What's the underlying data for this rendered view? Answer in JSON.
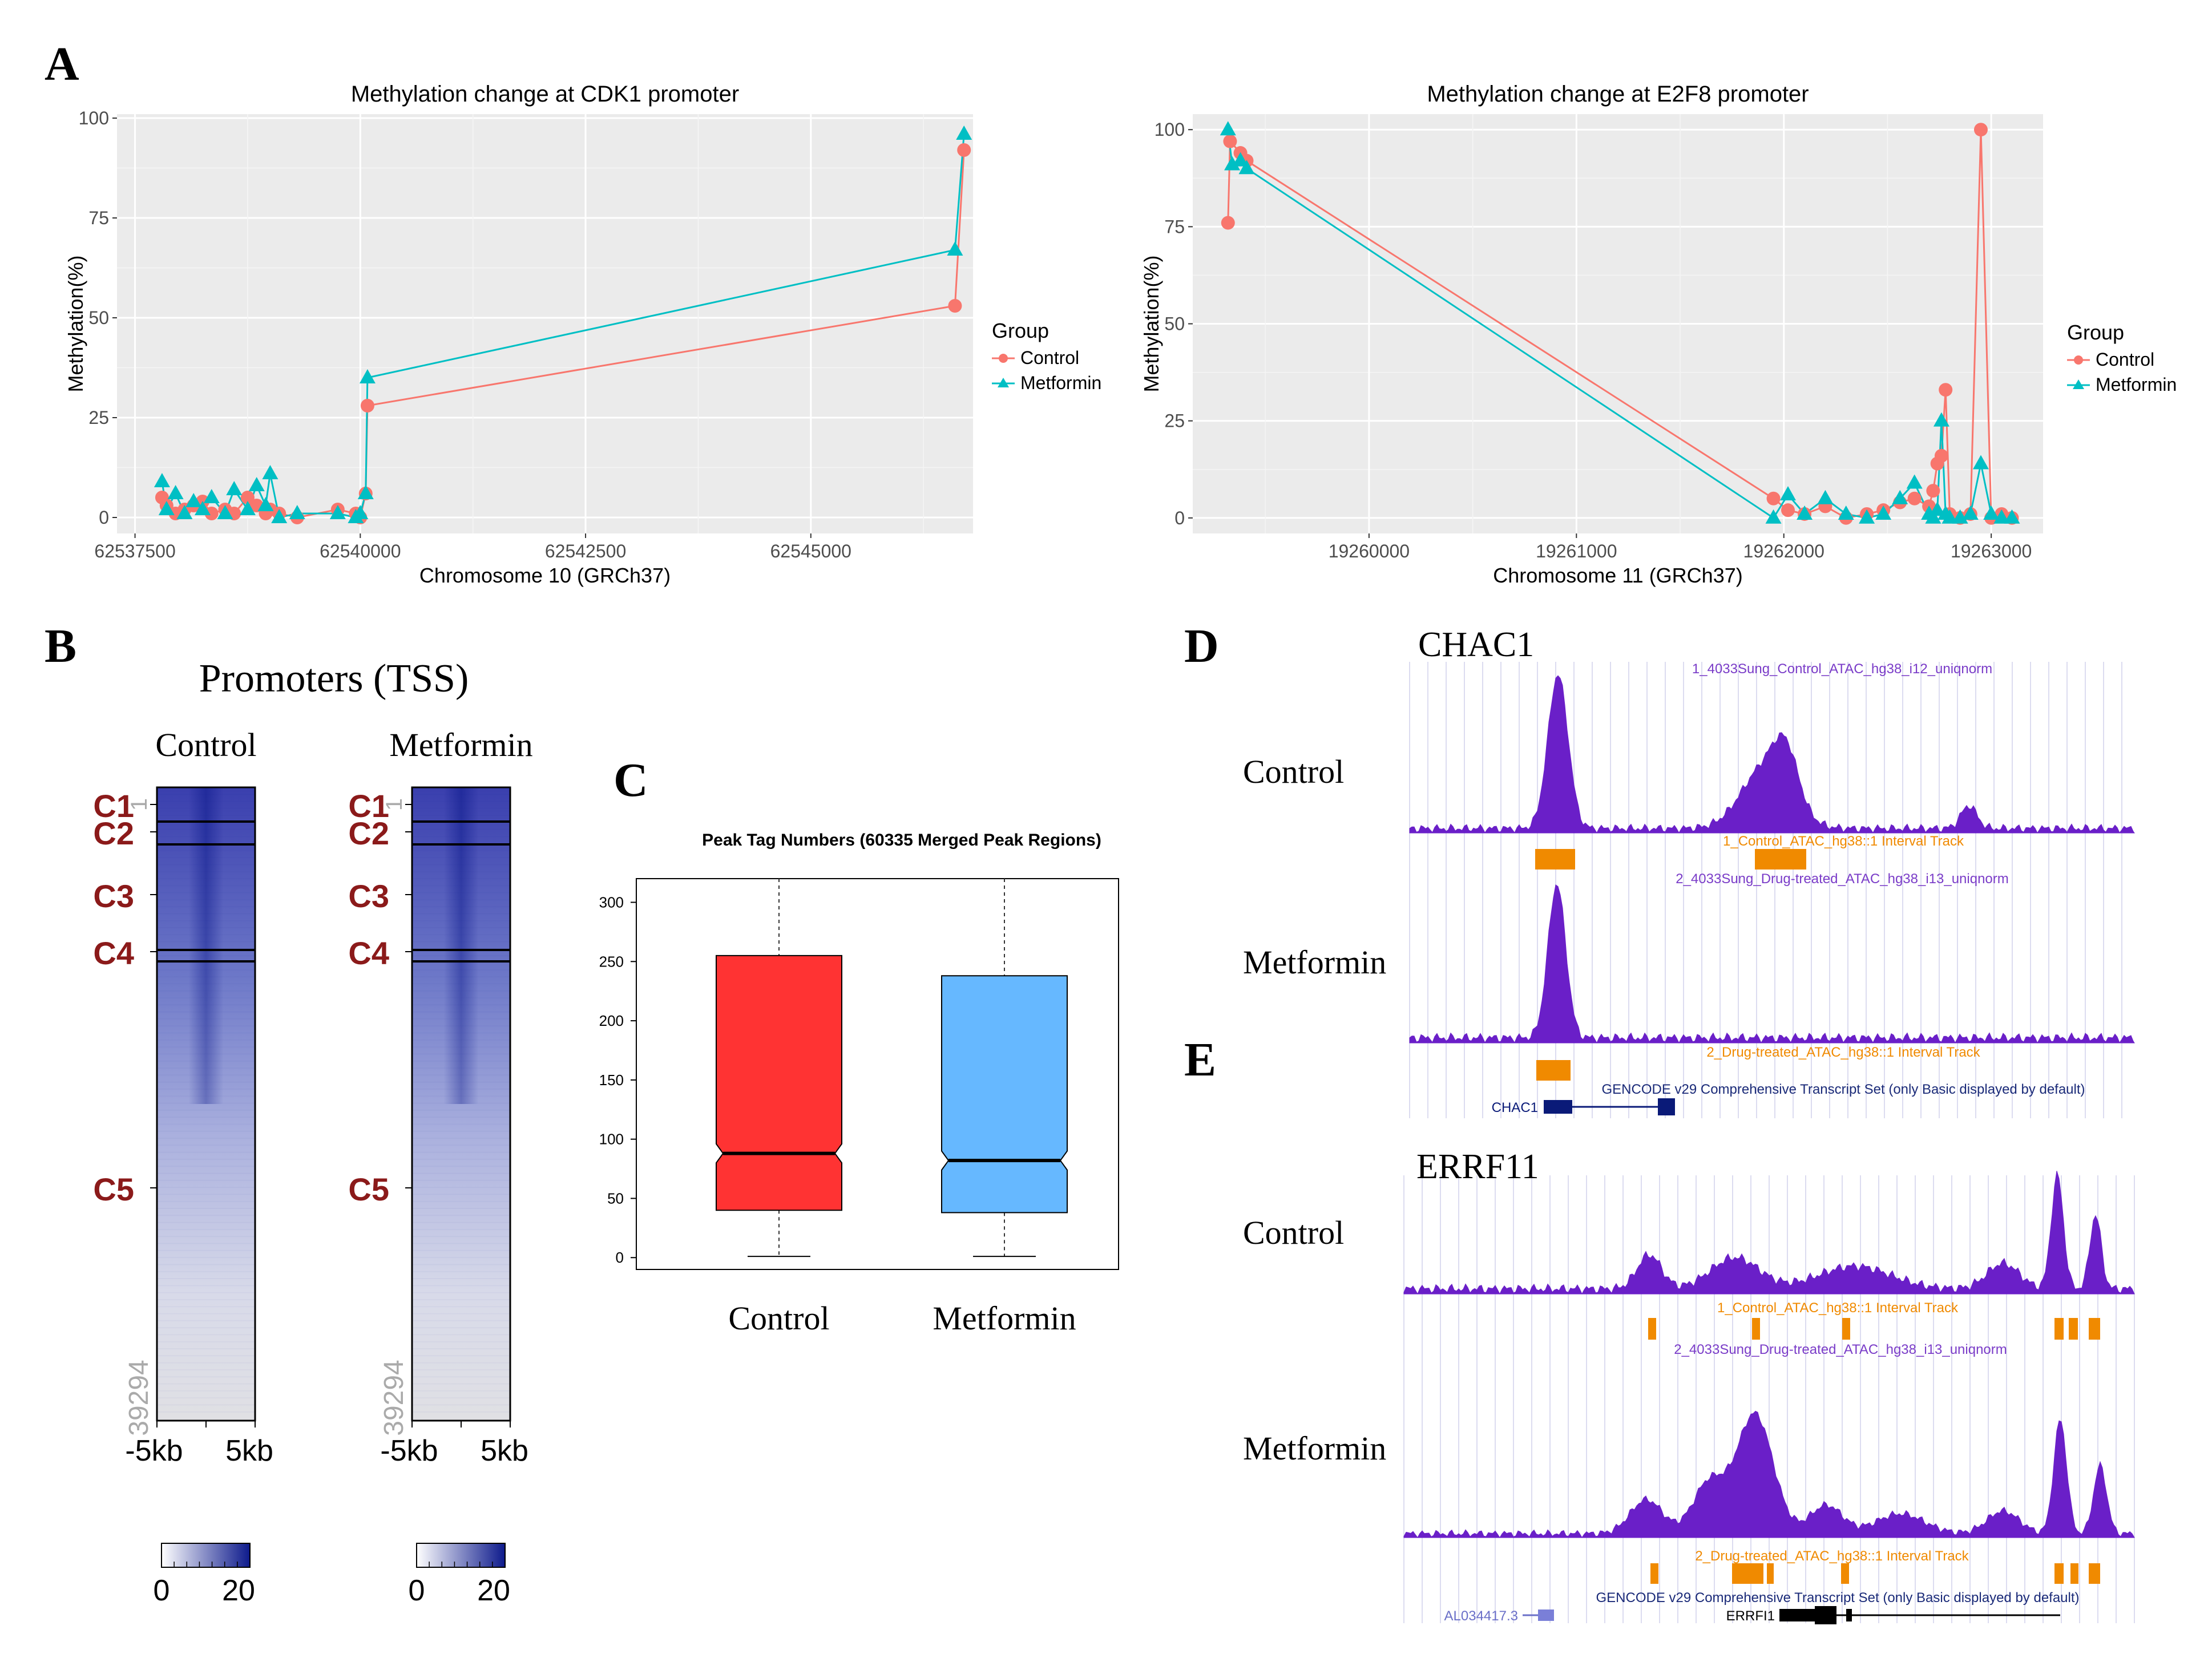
{
  "figure": {
    "panels": {
      "A": "A",
      "B": "B",
      "C": "C",
      "D": "D",
      "E": "E"
    }
  },
  "colors": {
    "control_line": "#f8766d",
    "metformin_line": "#00bfc4",
    "ggplot_bg": "#ebebeb",
    "box_control": "#ff3333",
    "box_metformin": "#66b8ff",
    "cluster_label": "#8b1a1a",
    "heatmap_blue": "#0d1a8c",
    "track_purple": "#6a1fc8",
    "interval_orange": "#f08a00",
    "gene_navy": "#0a1a78"
  },
  "chart_data": [
    {
      "id": "A_left",
      "type": "line",
      "title": "Methylation change at CDK1 promoter",
      "xlabel": "Chromosome 10 (GRCh37)",
      "ylabel": "Methylation(%)",
      "xlim": [
        62537300,
        62546800
      ],
      "ylim": [
        -4,
        101
      ],
      "xticks": [
        62537500,
        62540000,
        62542500,
        62545000
      ],
      "xtick_labels": [
        "62537500",
        "62540000",
        "62542500",
        "62545000"
      ],
      "yticks": [
        0,
        25,
        50,
        75,
        100
      ],
      "ytick_labels": [
        "0",
        "25",
        "50",
        "75",
        "100"
      ],
      "legend": {
        "title": "Group",
        "entries": [
          "Control",
          "Metformin"
        ],
        "position": "right"
      },
      "series": [
        {
          "name": "Control",
          "x": [
            62537800,
            62537850,
            62537950,
            62538050,
            62538150,
            62538250,
            62538350,
            62538500,
            62538600,
            62538750,
            62538850,
            62538950,
            62539000,
            62539100,
            62539300,
            62539750,
            62539950,
            62540000,
            62540060,
            62540080,
            62546600,
            62546700
          ],
          "y": [
            5,
            3,
            1,
            2,
            3,
            4,
            1,
            2,
            1,
            5,
            3,
            1,
            2,
            1,
            0,
            2,
            1,
            0,
            6,
            28,
            53,
            92
          ]
        },
        {
          "name": "Metformin",
          "x": [
            62537800,
            62537850,
            62537950,
            62538050,
            62538150,
            62538250,
            62538350,
            62538500,
            62538600,
            62538750,
            62538850,
            62538950,
            62539000,
            62539100,
            62539300,
            62539750,
            62539950,
            62540000,
            62540060,
            62540080,
            62546600,
            62546700
          ],
          "y": [
            9,
            2,
            6,
            1,
            4,
            2,
            5,
            1,
            7,
            2,
            8,
            3,
            11,
            0,
            1,
            1,
            0,
            1,
            6,
            35,
            67,
            96
          ]
        }
      ]
    },
    {
      "id": "A_right",
      "type": "line",
      "title": "Methylation change at E2F8 promoter",
      "xlabel": "Chromosome 11 (GRCh37)",
      "ylabel": "Methylation(%)",
      "xlim": [
        19259150,
        19263250
      ],
      "ylim": [
        -4,
        104
      ],
      "xticks": [
        19260000,
        19261000,
        19262000,
        19263000
      ],
      "xtick_labels": [
        "19260000",
        "19261000",
        "19262000",
        "19263000"
      ],
      "yticks": [
        0,
        25,
        50,
        75,
        100
      ],
      "ytick_labels": [
        "0",
        "25",
        "50",
        "75",
        "100"
      ],
      "legend": {
        "title": "Group",
        "entries": [
          "Control",
          "Metformin"
        ],
        "position": "right"
      },
      "series": [
        {
          "name": "Control",
          "x": [
            19259320,
            19259330,
            19259380,
            19259410,
            19261950,
            19262020,
            19262100,
            19262200,
            19262300,
            19262400,
            19262480,
            19262560,
            19262630,
            19262700,
            19262720,
            19262740,
            19262760,
            19262780,
            19262800,
            19262850,
            19262900,
            19262950,
            19263000,
            19263050,
            19263100
          ],
          "y": [
            76,
            97,
            94,
            92,
            5,
            2,
            1,
            3,
            0,
            1,
            2,
            4,
            5,
            3,
            7,
            14,
            16,
            33,
            1,
            0,
            1,
            100,
            0,
            1,
            0
          ]
        },
        {
          "name": "Metformin",
          "x": [
            19259320,
            19259340,
            19259380,
            19259410,
            19261950,
            19262020,
            19262100,
            19262200,
            19262300,
            19262400,
            19262480,
            19262560,
            19262630,
            19262700,
            19262720,
            19262740,
            19262760,
            19262780,
            19262800,
            19262850,
            19262900,
            19262950,
            19263000,
            19263050,
            19263100
          ],
          "y": [
            100,
            91,
            92,
            90,
            0,
            6,
            1,
            5,
            1,
            0,
            1,
            5,
            9,
            1,
            0,
            2,
            25,
            1,
            0,
            0,
            1,
            14,
            1,
            0,
            0
          ]
        }
      ]
    },
    {
      "id": "B",
      "type": "heatmap",
      "title": "Promoters (TSS)",
      "heatmaps": [
        "Control",
        "Metformin"
      ],
      "clusters": [
        "C1",
        "C2",
        "C3",
        "C4",
        "C5"
      ],
      "row_top_label": "1",
      "row_bottom_label": "39294",
      "xtick_labels": [
        "-5kb",
        "5kb"
      ],
      "colorbar": {
        "min": 0,
        "max": 20,
        "labels": [
          "0",
          "20"
        ]
      }
    },
    {
      "id": "C",
      "type": "bar",
      "subtype": "boxplot",
      "title": "Peak Tag Numbers (60335 Merged Peak Regions)",
      "categories": [
        "Control",
        "Metformin"
      ],
      "ylim": [
        -10,
        320
      ],
      "yticks": [
        0,
        50,
        100,
        150,
        200,
        250,
        300
      ],
      "ytick_labels": [
        "0",
        "50",
        "100",
        "150",
        "200",
        "250",
        "300"
      ],
      "boxes": [
        {
          "name": "Control",
          "q1": 40,
          "median": 88,
          "q3": 255,
          "whisker_low": 1,
          "whisker_high": 320
        },
        {
          "name": "Metformin",
          "q1": 38,
          "median": 82,
          "q3": 238,
          "whisker_low": 1,
          "whisker_high": 320
        }
      ]
    },
    {
      "id": "D",
      "type": "area",
      "gene": "CHAC1",
      "rows": [
        "Control",
        "Metformin"
      ],
      "track_labels": {
        "control_signal": "1_4033Sung_Control_ATAC_hg38_i12_uniqnorm",
        "control_interval": "1_Control_ATAC_hg38::1 Interval Track",
        "drug_signal": "2_4033Sung_Drug-treated_ATAC_hg38_i13_uniqnorm",
        "drug_interval": "2_Drug-treated_ATAC_hg38::1 Interval Track",
        "gencode": "GENCODE v29 Comprehensive Transcript Set (only Basic displayed by default)",
        "transcript": "CHAC1"
      }
    },
    {
      "id": "E",
      "type": "area",
      "gene": "ERRF11",
      "rows": [
        "Control",
        "Metformin"
      ],
      "track_labels": {
        "control_interval": "1_Control_ATAC_hg38::1 Interval Track",
        "drug_signal": "2_4033Sung_Drug-treated_ATAC_hg38_i13_uniqnorm",
        "drug_interval": "2_Drug-treated_ATAC_hg38::1 Interval Track",
        "gencode": "GENCODE v29 Comprehensive Transcript Set (only Basic displayed by default)",
        "transcript_left": "AL034417.3",
        "transcript_right": "ERRFI1"
      }
    }
  ]
}
